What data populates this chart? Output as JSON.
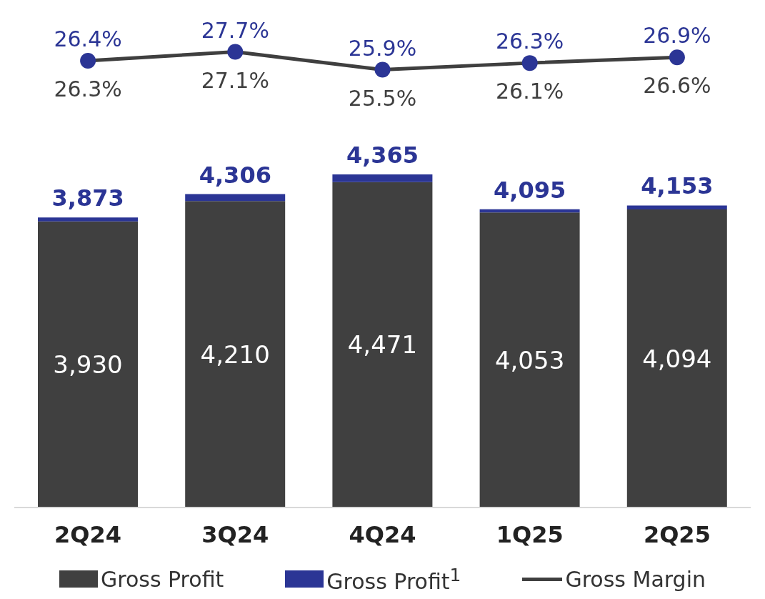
{
  "chart_data": [
    {
      "type": "line",
      "tick_labels": false,
      "marker": "circle",
      "categories": [
        null,
        null,
        null,
        null,
        null
      ],
      "series": [
        {
          "name": "Gross Margin",
          "color": "#3f3f3f",
          "colors": [
            "#2b3595",
            "#2b3595",
            "#2b3595",
            "#2b3595",
            "#2b3595"
          ],
          "values": [
            26.3,
            27.1,
            25.5,
            26.1,
            26.6
          ],
          "value_labels": [
            "26.3%",
            "27.1%",
            "25.5%",
            "26.1%",
            "26.6%"
          ]
        }
      ],
      "annotations": [
        "26.4%",
        "27.7%",
        "25.9%",
        "26.3%",
        "26.9%"
      ]
    },
    {
      "type": "bar",
      "stacked": true,
      "legend": "bottom",
      "tick_labels": "x",
      "categories": [
        "2Q24",
        "3Q24",
        "4Q24",
        "1Q25",
        "2Q25"
      ],
      "series": [
        {
          "name": "Gross Profit",
          "color": "#404040",
          "values": [
            3930,
            4210,
            4471,
            4053,
            4094
          ],
          "value_labels": [
            "3,930",
            "4,210",
            "4,471",
            "4,053",
            "4,094"
          ]
        },
        {
          "name": "Gross Profit$^{1}$",
          "color": "#2b3595",
          "values": [
            55,
            95,
            105,
            45,
            55
          ]
        }
      ],
      "annotations": [
        {
          "text": "3,873",
          "x": "2Q24",
          "y": 3985
        },
        {
          "text": "4,306",
          "x": "3Q24",
          "y": 4305
        },
        {
          "text": "4,365",
          "x": "4Q24",
          "y": 4576
        },
        {
          "text": "4,095",
          "x": "1Q25",
          "y": 4098
        },
        {
          "text": "4,153",
          "x": "2Q25",
          "y": 4149
        }
      ]
    }
  ]
}
